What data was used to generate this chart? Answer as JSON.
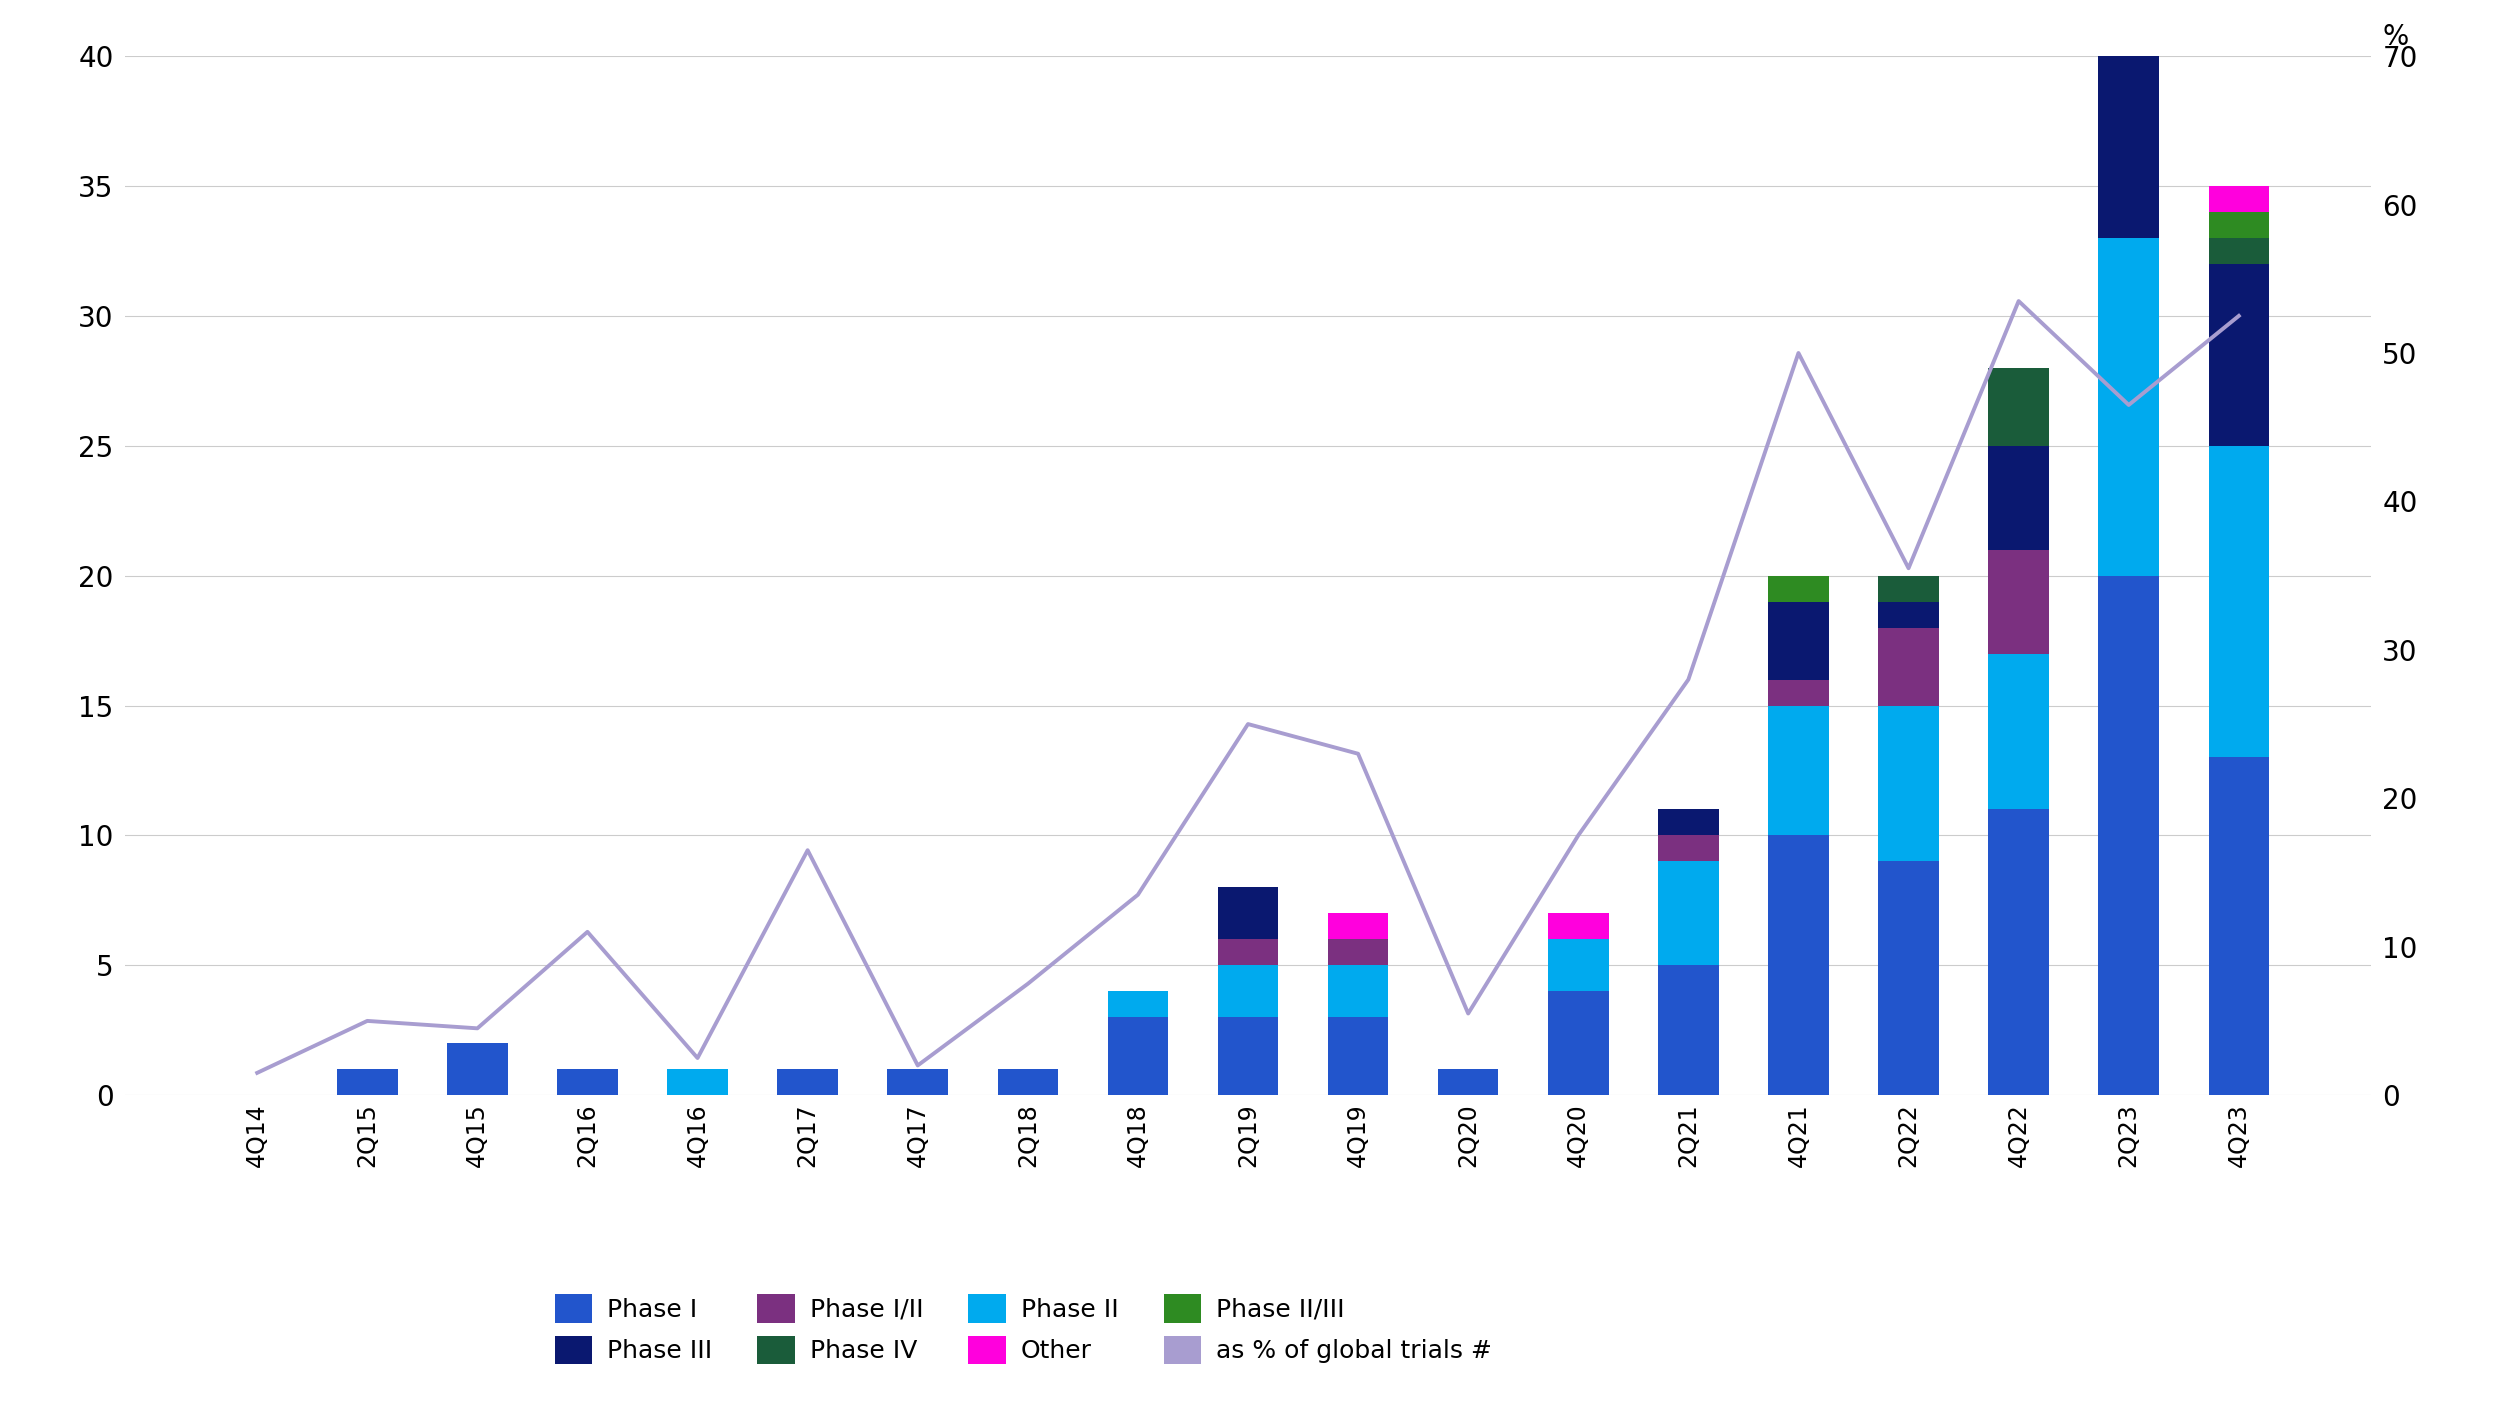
{
  "categories": [
    "4Q14",
    "2Q15",
    "4Q15",
    "2Q16",
    "4Q16",
    "2Q17",
    "4Q17",
    "2Q18",
    "4Q18",
    "2Q19",
    "4Q19",
    "2Q20",
    "4Q20",
    "2Q21",
    "4Q21",
    "2Q22",
    "4Q22",
    "2Q23",
    "4Q23"
  ],
  "phase_I": [
    0,
    1,
    2,
    1,
    0,
    1,
    1,
    1,
    3,
    3,
    3,
    1,
    4,
    5,
    10,
    9,
    11,
    20,
    13
  ],
  "phase_II": [
    0,
    0,
    0,
    0,
    1,
    0,
    0,
    0,
    1,
    2,
    2,
    0,
    2,
    4,
    5,
    6,
    6,
    13,
    12
  ],
  "phase_III": [
    0,
    0,
    0,
    0,
    0,
    0,
    0,
    0,
    0,
    2,
    0,
    0,
    0,
    1,
    3,
    1,
    4,
    9,
    7
  ],
  "phase_I_II": [
    0,
    0,
    0,
    0,
    0,
    0,
    0,
    0,
    0,
    1,
    1,
    0,
    0,
    1,
    1,
    3,
    4,
    0,
    0
  ],
  "phase_II_III": [
    0,
    0,
    0,
    0,
    0,
    0,
    0,
    0,
    0,
    0,
    0,
    0,
    0,
    0,
    1,
    0,
    0,
    0,
    1
  ],
  "phase_IV": [
    0,
    0,
    0,
    0,
    0,
    0,
    0,
    0,
    0,
    0,
    0,
    0,
    0,
    0,
    0,
    1,
    3,
    0,
    1
  ],
  "other": [
    0,
    0,
    0,
    0,
    0,
    0,
    0,
    0,
    0,
    0,
    1,
    0,
    1,
    0,
    0,
    0,
    0,
    1,
    1
  ],
  "pct_global": [
    1.5,
    5.0,
    4.5,
    11.0,
    2.5,
    16.5,
    2.0,
    7.5,
    13.5,
    25.0,
    23.0,
    5.5,
    17.5,
    28.0,
    50.0,
    35.5,
    53.5,
    46.5,
    52.5
  ],
  "colors": {
    "phase_I": "#2255CC",
    "phase_II": "#00AAEE",
    "phase_III": "#0A1870",
    "phase_I_II": "#7B3080",
    "phase_II_III": "#2E8B22",
    "phase_IV": "#1A5C3A",
    "other": "#FF00DD"
  },
  "line_color": "#A89DD0",
  "ylim_left": [
    0,
    40
  ],
  "ylim_right": [
    0,
    70
  ],
  "yticks_left": [
    0,
    5,
    10,
    15,
    20,
    25,
    30,
    35,
    40
  ],
  "yticks_right": [
    0,
    10,
    20,
    30,
    40,
    50,
    60,
    70
  ],
  "background_color": "#FFFFFF",
  "grid_color": "#CCCCCC"
}
